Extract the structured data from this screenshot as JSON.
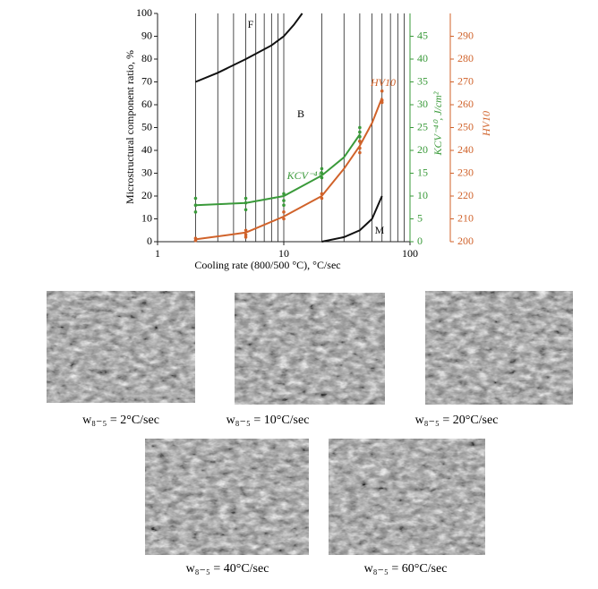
{
  "chart_data": {
    "type": "line",
    "xscale": "log",
    "xlim": [
      1,
      100
    ],
    "xticks": [
      1,
      10,
      100
    ],
    "xgrid": [
      2,
      3,
      4,
      5,
      6,
      7,
      8,
      9,
      10,
      20,
      30,
      40,
      50,
      60,
      70,
      80,
      90
    ],
    "ylim": [
      0,
      100
    ],
    "yticks": [
      0,
      10,
      20,
      30,
      40,
      50,
      60,
      70,
      80,
      90,
      100
    ],
    "y2lim": [
      0,
      50
    ],
    "y2ticks": [
      0,
      5,
      10,
      15,
      20,
      25,
      30,
      35,
      40,
      45
    ],
    "y2color": "#3a9a3a",
    "y3lim": [
      200,
      300
    ],
    "y3ticks": [
      200,
      210,
      220,
      230,
      240,
      250,
      260,
      270,
      280,
      290
    ],
    "y3color": "#d0622a",
    "xlabel": "Cooling rate (800/500 °C), °C/sec",
    "ylabel": "Microstructural component ratio, %",
    "y2label": "KCV⁻⁴⁰, J/cm²",
    "y3label": "HV10",
    "annotations": [
      "B"
    ],
    "series": [
      {
        "name": "F",
        "color": "#111111",
        "x": [
          2,
          3,
          5,
          8,
          10,
          12,
          14
        ],
        "values": [
          70,
          74,
          80,
          86,
          90,
          95,
          100
        ]
      },
      {
        "name": "M",
        "color": "#111111",
        "x": [
          20,
          30,
          40,
          50,
          60
        ],
        "values": [
          0,
          2,
          5,
          10,
          20
        ]
      },
      {
        "name": "KCV⁻⁴⁰",
        "color": "#3a9a3a",
        "axis": "y2",
        "x": [
          2,
          5,
          10,
          20,
          30,
          40
        ],
        "values": [
          8,
          8.5,
          10,
          14.5,
          18.5,
          23.5
        ],
        "points": {
          "x": [
            2,
            2,
            2,
            5,
            5,
            5,
            10,
            10,
            10,
            20,
            20,
            20,
            40,
            40,
            40,
            40
          ],
          "values": [
            9.5,
            8,
            6.5,
            9.5,
            8.5,
            7,
            10.5,
            9,
            8,
            16,
            15,
            14,
            25,
            24,
            23,
            22
          ]
        }
      },
      {
        "name": "HV10",
        "color": "#d0622a",
        "axis": "y3",
        "x": [
          2,
          5,
          10,
          20,
          30,
          40,
          50,
          60
        ],
        "values": [
          201,
          204,
          211,
          220,
          232,
          242,
          252,
          263
        ],
        "points": {
          "x": [
            2,
            2,
            5,
            5,
            5,
            10,
            10,
            20,
            20,
            40,
            40,
            40,
            60,
            60,
            60
          ],
          "values": [
            200.5,
            201.5,
            205,
            203,
            202,
            213,
            210,
            221,
            219,
            244,
            241,
            239,
            266,
            262,
            261
          ]
        }
      }
    ]
  },
  "micrographs": [
    {
      "caption": "w₈₋₅ = 2°C/sec"
    },
    {
      "caption": "w₈₋₅ = 10°C/sec"
    },
    {
      "caption": "w₈₋₅ = 20°C/sec"
    },
    {
      "caption": "w₈₋₅ = 40°C/sec"
    },
    {
      "caption": "w₈₋₅ = 60°C/sec"
    }
  ]
}
